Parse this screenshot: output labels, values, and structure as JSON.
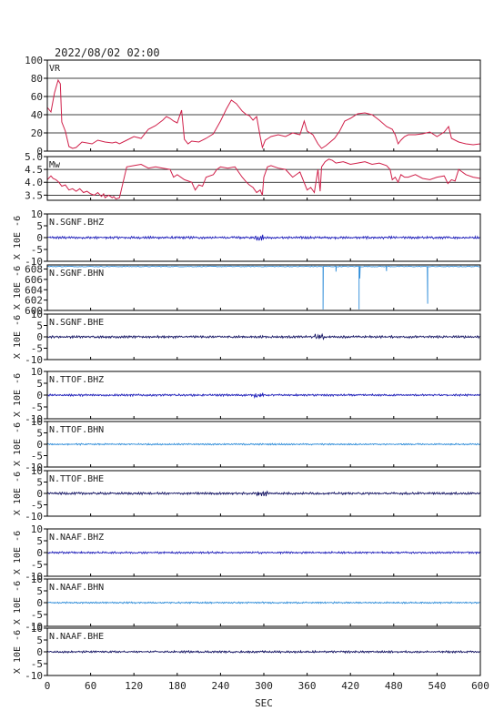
{
  "title": "2022/08/02 02:00",
  "xlabel": "SEC",
  "colors": {
    "vr": "#d0204a",
    "z": "#1a1ab8",
    "n": "#2a8ad8",
    "e": "#101060",
    "axis": "#000000"
  },
  "chart_data": [
    {
      "type": "line",
      "label": "VR",
      "ylim": [
        0,
        100
      ],
      "yticks": [
        0,
        20,
        40,
        60,
        80,
        100
      ],
      "grid": true,
      "series": [
        {
          "name": "VR",
          "x": [
            0,
            5,
            10,
            15,
            18,
            20,
            25,
            30,
            35,
            40,
            48,
            55,
            62,
            70,
            80,
            90,
            95,
            100,
            110,
            120,
            130,
            140,
            150,
            160,
            165,
            170,
            175,
            180,
            186,
            190,
            195,
            200,
            210,
            220,
            230,
            240,
            248,
            255,
            262,
            270,
            276,
            280,
            285,
            290,
            295,
            298,
            302,
            306,
            310,
            320,
            330,
            340,
            350,
            356,
            360,
            368,
            375,
            380,
            386,
            392,
            398,
            405,
            412,
            420,
            430,
            440,
            450,
            460,
            470,
            478,
            482,
            486,
            490,
            495,
            500,
            510,
            520,
            530,
            540,
            550,
            556,
            560,
            570,
            580,
            590,
            600
          ],
          "y": [
            48,
            43,
            64,
            78,
            74,
            32,
            22,
            5,
            3,
            4,
            10,
            9,
            8,
            12,
            10,
            9,
            10,
            8,
            12,
            16,
            14,
            24,
            28,
            34,
            38,
            36,
            33,
            31,
            45,
            13,
            8,
            11,
            10,
            14,
            19,
            33,
            46,
            56,
            52,
            44,
            40,
            39,
            34,
            38,
            16,
            4,
            12,
            14,
            16,
            18,
            16,
            20,
            18,
            33,
            22,
            18,
            8,
            3,
            6,
            10,
            14,
            22,
            33,
            36,
            41,
            42,
            40,
            34,
            27,
            24,
            18,
            8,
            12,
            16,
            18,
            18,
            19,
            21,
            16,
            21,
            27,
            14,
            10,
            8,
            7,
            8
          ]
        }
      ]
    },
    {
      "type": "line",
      "label": "Mw",
      "ylim": [
        3.3,
        5.0
      ],
      "yticks": [
        3.5,
        4.0,
        4.5,
        5.0
      ],
      "ytick_labels": [
        "3.5",
        "4.0",
        "4.5",
        "5.0"
      ],
      "grid": true,
      "series": [
        {
          "name": "Mw",
          "x": [
            0,
            5,
            8,
            12,
            16,
            20,
            25,
            30,
            35,
            40,
            45,
            50,
            55,
            60,
            65,
            70,
            75,
            78,
            80,
            85,
            90,
            92,
            95,
            100,
            110,
            120,
            130,
            140,
            150,
            160,
            170,
            175,
            180,
            190,
            200,
            205,
            210,
            215,
            220,
            230,
            235,
            240,
            250,
            260,
            270,
            276,
            280,
            285,
            290,
            295,
            298,
            300,
            305,
            310,
            320,
            330,
            340,
            350,
            360,
            365,
            370,
            375,
            378,
            380,
            385,
            390,
            395,
            400,
            410,
            420,
            430,
            440,
            450,
            460,
            470,
            475,
            478,
            482,
            486,
            490,
            495,
            500,
            510,
            520,
            530,
            540,
            550,
            555,
            560,
            565,
            570,
            580,
            590,
            600
          ],
          "y": [
            4.1,
            4.25,
            4.15,
            4.1,
            4.0,
            3.85,
            3.9,
            3.7,
            3.75,
            3.65,
            3.75,
            3.6,
            3.65,
            3.55,
            3.5,
            3.6,
            3.45,
            3.55,
            3.4,
            3.5,
            3.4,
            3.45,
            3.35,
            3.4,
            4.6,
            4.65,
            4.7,
            4.55,
            4.6,
            4.55,
            4.5,
            4.2,
            4.3,
            4.1,
            4.0,
            3.7,
            3.9,
            3.85,
            4.2,
            4.3,
            4.5,
            4.6,
            4.55,
            4.6,
            4.2,
            4.0,
            3.9,
            3.8,
            3.6,
            3.7,
            3.5,
            4.2,
            4.6,
            4.65,
            4.55,
            4.5,
            4.2,
            4.4,
            3.7,
            3.8,
            3.6,
            4.5,
            3.65,
            4.6,
            4.8,
            4.9,
            4.85,
            4.75,
            4.8,
            4.7,
            4.75,
            4.8,
            4.7,
            4.75,
            4.65,
            4.5,
            4.1,
            4.2,
            4.0,
            4.3,
            4.2,
            4.2,
            4.3,
            4.15,
            4.1,
            4.2,
            4.25,
            3.95,
            4.1,
            4.05,
            4.5,
            4.3,
            4.2,
            4.15
          ]
        }
      ]
    },
    {
      "type": "line",
      "label": "N.SGNF.BHZ",
      "channel": "z",
      "ylim": [
        -10,
        10
      ],
      "yticks": [
        -10,
        -5,
        0,
        5,
        10
      ],
      "ylabel": "X 10E -6",
      "noise": 0.6,
      "burst_at": [
        288,
        300
      ]
    },
    {
      "type": "line",
      "label": "N.SGNF.BHN",
      "channel": "n",
      "ylim": [
        600,
        608.8
      ],
      "yticks": [
        600,
        602,
        604,
        606,
        608
      ],
      "ylabel": "X 10E -6",
      "baseline": 608.5,
      "spikes": [
        {
          "x": 382,
          "to": 600.2
        },
        {
          "x": 432,
          "to": 600.2
        },
        {
          "x": 433,
          "to": 606.2
        },
        {
          "x": 527,
          "to": 601.3
        },
        {
          "x": 400,
          "to": 607.5
        },
        {
          "x": 470,
          "to": 607.6
        }
      ]
    },
    {
      "type": "line",
      "label": "N.SGNF.BHE",
      "channel": "e",
      "ylim": [
        -10,
        10
      ],
      "yticks": [
        -10,
        -5,
        0,
        5,
        10
      ],
      "ylabel": "X 10E -6",
      "noise": 0.6,
      "burst_at": [
        370,
        385
      ]
    },
    {
      "type": "line",
      "label": "N.TTOF.BHZ",
      "channel": "z",
      "ylim": [
        -10,
        10
      ],
      "yticks": [
        -10,
        -5,
        0,
        5,
        10
      ],
      "ylabel": "X 10E -6",
      "noise": 0.5,
      "burst_at": [
        285,
        300
      ]
    },
    {
      "type": "line",
      "label": "N.TTOF.BHN",
      "channel": "n",
      "ylim": [
        -10,
        10
      ],
      "yticks": [
        -10,
        -5,
        0,
        5,
        10
      ],
      "ylabel": "X 10E -6",
      "noise": 0.4,
      "burst_at": []
    },
    {
      "type": "line",
      "label": "N.TTOF.BHE",
      "channel": "e",
      "ylim": [
        -10,
        10
      ],
      "yticks": [
        -10,
        -5,
        0,
        5,
        10
      ],
      "ylabel": "X 10E -6",
      "noise": 0.6,
      "burst_at": [
        290,
        305
      ]
    },
    {
      "type": "line",
      "label": "N.NAAF.BHZ",
      "channel": "z",
      "ylim": [
        -10,
        10
      ],
      "yticks": [
        -10,
        -5,
        0,
        5,
        10
      ],
      "ylabel": "X 10E -6",
      "noise": 0.5,
      "burst_at": []
    },
    {
      "type": "line",
      "label": "N.NAAF.BHN",
      "channel": "n",
      "ylim": [
        -10,
        10
      ],
      "yticks": [
        -10,
        -5,
        0,
        5,
        10
      ],
      "ylabel": "X 10E -6",
      "noise": 0.4,
      "burst_at": []
    },
    {
      "type": "line",
      "label": "N.NAAF.BHE",
      "channel": "e",
      "ylim": [
        -10,
        10
      ],
      "yticks": [
        -10,
        -5,
        0,
        5,
        10
      ],
      "ylabel": "X 10E -6",
      "noise": 0.5,
      "burst_at": []
    }
  ],
  "xaxis": {
    "xlim": [
      0,
      600
    ],
    "xticks": [
      0,
      60,
      120,
      180,
      240,
      300,
      360,
      420,
      480,
      540,
      600
    ]
  }
}
